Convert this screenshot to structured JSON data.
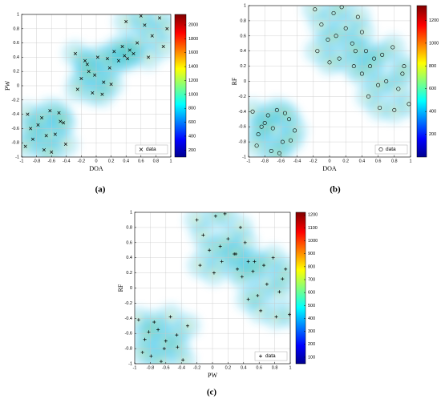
{
  "chart_data": [
    {
      "type": "scatter",
      "panel_label": "(a)",
      "xlabel": "DOA",
      "ylabel": "PW",
      "xlim": [
        -1,
        1
      ],
      "ylim": [
        -1,
        1
      ],
      "xticks": [
        -1,
        -0.8,
        -0.6,
        -0.4,
        -0.2,
        0,
        0.2,
        0.4,
        0.6,
        0.8,
        1
      ],
      "yticks": [
        -1,
        -0.8,
        -0.6,
        -0.4,
        -0.2,
        0,
        0.2,
        0.4,
        0.6,
        0.8,
        1
      ],
      "grid": true,
      "legend": "lower right",
      "colormap": "jet",
      "clim": [
        100,
        2150
      ],
      "cticks": [
        200,
        400,
        600,
        800,
        1000,
        1200,
        1400,
        1600,
        1800,
        2000
      ],
      "series": [
        {
          "name": "data",
          "marker": "x",
          "color": "#000000",
          "x": [
            -0.92,
            -0.85,
            -0.78,
            -0.7,
            -0.62,
            -0.55,
            -0.48,
            -0.41,
            -0.88,
            -0.73,
            -0.6,
            -0.5,
            -0.95,
            -0.67,
            -0.44,
            -0.28,
            -0.2,
            -0.12,
            -0.05,
            0.02,
            0.1,
            0.18,
            0.24,
            -0.25,
            -0.15,
            -0.02,
            0.08,
            0.15,
            -0.1,
            0.2,
            0.3,
            0.38,
            0.42,
            0.45,
            0.5,
            0.35,
            0.55,
            0.65,
            0.75,
            0.85,
            0.95,
            0.7,
            0.9,
            0.6,
            0.4
          ],
          "y": [
            -0.4,
            -0.75,
            -0.55,
            -0.9,
            -0.35,
            -0.68,
            -0.5,
            -0.82,
            -0.6,
            -0.45,
            -0.93,
            -0.38,
            -0.85,
            -0.7,
            -0.52,
            0.45,
            0.1,
            0.3,
            -0.1,
            0.4,
            0.05,
            0.25,
            0.48,
            -0.05,
            0.35,
            0.15,
            -0.12,
            0.38,
            0.2,
            0.02,
            0.35,
            0.42,
            0.38,
            0.5,
            0.45,
            0.55,
            0.6,
            0.85,
            0.7,
            0.95,
            0.8,
            0.4,
            0.55,
            0.98,
            0.9
          ]
        }
      ]
    },
    {
      "type": "scatter",
      "panel_label": "(b)",
      "xlabel": "DOA",
      "ylabel": "RF",
      "xlim": [
        -1,
        1
      ],
      "ylim": [
        -1,
        1
      ],
      "xticks": [
        -1,
        -0.8,
        -0.6,
        -0.4,
        -0.2,
        0,
        0.2,
        0.4,
        0.6,
        0.8,
        1
      ],
      "yticks": [
        -1,
        -0.8,
        -0.6,
        -0.4,
        -0.2,
        0,
        0.2,
        0.4,
        0.6,
        0.8,
        1
      ],
      "grid": true,
      "legend": "lower right",
      "colormap": "jet",
      "clim": [
        0,
        1330
      ],
      "cticks": [
        200,
        400,
        600,
        800,
        1000,
        1200
      ],
      "series": [
        {
          "name": "data",
          "marker": "o",
          "color": "#000000",
          "x": [
            -0.95,
            -0.88,
            -0.8,
            -0.72,
            -0.65,
            -0.58,
            -0.5,
            -0.43,
            -0.9,
            -0.76,
            -0.62,
            -0.48,
            -0.84,
            -0.7,
            -0.55,
            -0.18,
            -0.1,
            -0.02,
            0.05,
            0.12,
            0.2,
            0.28,
            0.35,
            0.45,
            -0.15,
            0.0,
            0.15,
            0.3,
            0.4,
            0.08,
            0.32,
            0.4,
            0.48,
            0.55,
            0.62,
            0.7,
            0.78,
            0.85,
            0.92,
            0.98,
            0.5,
            0.65,
            0.8,
            0.6,
            0.9
          ],
          "y": [
            -0.4,
            -0.7,
            -0.55,
            -0.92,
            -0.38,
            -0.8,
            -0.5,
            -0.65,
            -0.85,
            -0.45,
            -0.95,
            -0.78,
            -0.6,
            -0.62,
            -0.42,
            0.95,
            0.75,
            0.55,
            0.9,
            0.3,
            0.7,
            0.5,
            0.85,
            0.4,
            0.4,
            0.25,
            0.98,
            0.2,
            0.65,
            0.6,
            0.4,
            0.1,
            -0.2,
            0.3,
            -0.35,
            0.0,
            0.45,
            -0.1,
            0.2,
            -0.3,
            0.2,
            0.35,
            -0.38,
            -0.05,
            0.1
          ]
        }
      ]
    },
    {
      "type": "scatter",
      "panel_label": "(c)",
      "xlabel": "PW",
      "ylabel": "RF",
      "xlim": [
        -1,
        1
      ],
      "ylim": [
        -1,
        1
      ],
      "xticks": [
        -1,
        -0.8,
        -0.6,
        -0.4,
        -0.2,
        0,
        0.2,
        0.4,
        0.6,
        0.8,
        1
      ],
      "yticks": [
        -1,
        -0.8,
        -0.6,
        -0.4,
        -0.2,
        0,
        0.2,
        0.4,
        0.6,
        0.8,
        1
      ],
      "grid": true,
      "legend": "lower right",
      "colormap": "jet",
      "clim": [
        50,
        1220
      ],
      "cticks": [
        100,
        200,
        300,
        400,
        500,
        600,
        700,
        800,
        900,
        1000,
        1100,
        1200
      ],
      "series": [
        {
          "name": "data",
          "marker": "+",
          "color": "#000000",
          "x": [
            -0.95,
            -0.87,
            -0.79,
            -0.7,
            -0.62,
            -0.54,
            -0.46,
            -0.38,
            -0.32,
            -0.9,
            -0.75,
            -0.6,
            -0.45,
            -0.82,
            -0.66,
            -0.2,
            -0.12,
            -0.04,
            0.04,
            0.12,
            0.2,
            0.28,
            0.36,
            0.46,
            -0.16,
            0.02,
            0.16,
            0.32,
            0.42,
            0.1,
            0.3,
            0.38,
            0.46,
            0.54,
            0.62,
            0.7,
            0.78,
            0.86,
            0.94,
            0.99,
            0.52,
            0.66,
            0.82,
            0.58,
            0.9
          ],
          "y": [
            -0.42,
            -0.68,
            -0.9,
            -0.55,
            -0.8,
            -0.38,
            -0.62,
            -0.95,
            -0.5,
            -0.85,
            -0.45,
            -0.7,
            -0.78,
            -0.58,
            -0.97,
            0.9,
            0.7,
            0.5,
            0.95,
            0.35,
            0.65,
            0.45,
            0.8,
            0.35,
            0.3,
            0.2,
            0.98,
            0.25,
            0.6,
            0.55,
            0.45,
            0.15,
            -0.15,
            0.35,
            -0.3,
            0.05,
            0.4,
            -0.05,
            0.25,
            -0.35,
            0.22,
            0.3,
            -0.38,
            -0.1,
            0.12
          ]
        }
      ]
    }
  ]
}
